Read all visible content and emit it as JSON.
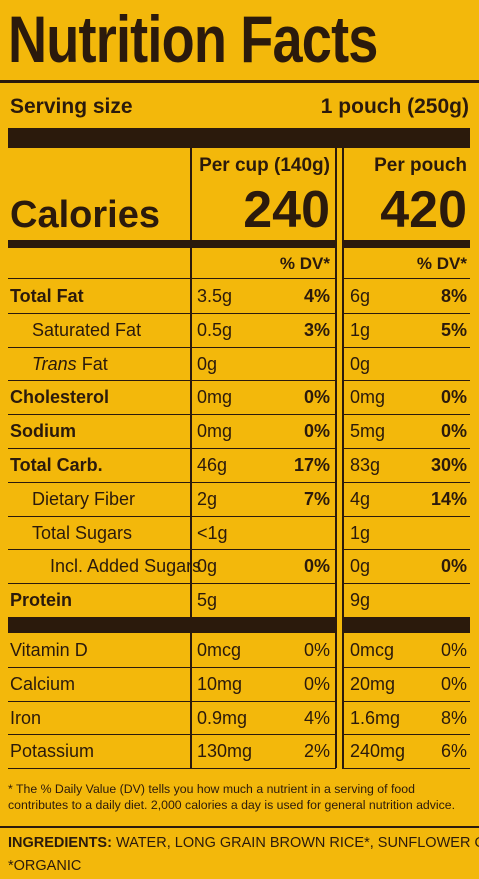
{
  "title": "Nutrition Facts",
  "serving": {
    "label": "Serving size",
    "value": "1 pouch (250g)"
  },
  "columns": [
    "Per cup (140g)",
    "Per pouch"
  ],
  "calories": {
    "label": "Calories",
    "values": [
      "240",
      "420"
    ]
  },
  "dv_headers": [
    "% DV*",
    "% DV*"
  ],
  "nutrients": [
    {
      "name": "Total Fat",
      "bold": true,
      "indent": 0,
      "cup": [
        "3.5g",
        "4%"
      ],
      "pouch": [
        "6g",
        "8%"
      ]
    },
    {
      "name": "Saturated Fat",
      "bold": false,
      "indent": 1,
      "cup": [
        "0.5g",
        "3%"
      ],
      "pouch": [
        "1g",
        "5%"
      ]
    },
    {
      "name_italic": "Trans",
      "name": "Fat",
      "bold": false,
      "indent": 1,
      "cup": [
        "0g"
      ],
      "pouch": [
        "0g"
      ]
    },
    {
      "name": "Cholesterol",
      "bold": true,
      "indent": 0,
      "cup": [
        "0mg",
        "0%"
      ],
      "pouch": [
        "0mg",
        "0%"
      ]
    },
    {
      "name": "Sodium",
      "bold": true,
      "indent": 0,
      "cup": [
        "0mg",
        "0%"
      ],
      "pouch": [
        "5mg",
        "0%"
      ]
    },
    {
      "name": "Total Carb.",
      "bold": true,
      "indent": 0,
      "cup": [
        "46g",
        "17%"
      ],
      "pouch": [
        "83g",
        "30%"
      ]
    },
    {
      "name": "Dietary Fiber",
      "bold": false,
      "indent": 1,
      "cup": [
        "2g",
        "7%"
      ],
      "pouch": [
        "4g",
        "14%"
      ]
    },
    {
      "name": "Total Sugars",
      "bold": false,
      "indent": 1,
      "cup": [
        "<1g"
      ],
      "pouch": [
        "1g"
      ]
    },
    {
      "name": "Incl. Added Sugars",
      "bold": false,
      "indent": 2,
      "cup": [
        "0g",
        "0%"
      ],
      "pouch": [
        "0g",
        "0%"
      ]
    },
    {
      "name": "Protein",
      "bold": true,
      "indent": 0,
      "cup": [
        "5g"
      ],
      "pouch": [
        "9g"
      ]
    }
  ],
  "vitamins": [
    {
      "name": "Vitamin D",
      "cup": [
        "0mcg",
        "0%"
      ],
      "pouch": [
        "0mcg",
        "0%"
      ]
    },
    {
      "name": "Calcium",
      "cup": [
        "10mg",
        "0%"
      ],
      "pouch": [
        "20mg",
        "0%"
      ]
    },
    {
      "name": "Iron",
      "cup": [
        "0.9mg",
        "4%"
      ],
      "pouch": [
        "1.6mg",
        "8%"
      ]
    },
    {
      "name": "Potassium",
      "cup": [
        "130mg",
        "2%"
      ],
      "pouch": [
        "240mg",
        "6%"
      ]
    }
  ],
  "footnote": "* The % Daily Value (DV) tells you how much a nutrient in a serving of food contributes to a daily diet. 2,000 calories a day is used for general nutrition advice.",
  "ingredients": {
    "label": "INGREDIENTS:",
    "text": "WATER, LONG GRAIN BROWN RICE*, SUNFLOWER OIL*.",
    "note": "*ORGANIC"
  }
}
